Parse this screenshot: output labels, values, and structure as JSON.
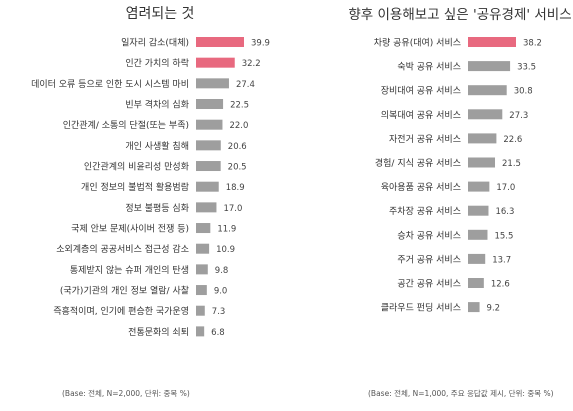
{
  "colors": {
    "highlight": "#e8697f",
    "bar": "#9e9e9e"
  },
  "chart_data": [
    {
      "type": "bar",
      "orientation": "horizontal",
      "title": "염려되는 것",
      "note": "(Base: 전체, N=2,000, 단위: 중복 %)",
      "categories": [
        "일자리 감소(대체)",
        "인간 가치의 하락",
        "데이터 오류 등으로 인한 도시 시스템 마비",
        "빈부 격차의 심화",
        "인간관계/ 소통의 단절(또는 부족)",
        "개인 사생활 침해",
        "인간관계의 비윤리성 만성화",
        "개인 정보의 불법적 활용범람",
        "정보 불평등 심화",
        "국제 안보 문제(사이버 전쟁 등)",
        "소외계층의 공공서비스 접근성 감소",
        "통제받지 않는 슈퍼 개인의 탄생",
        "(국가)기관의 개인 정보 열람/ 사찰",
        "즉흥적이며, 인기에 편승한 국가운영",
        "전통문화의 쇠퇴"
      ],
      "values": [
        39.9,
        32.2,
        27.4,
        22.5,
        22.0,
        20.6,
        20.5,
        18.9,
        17.0,
        11.9,
        10.9,
        9.8,
        9.0,
        7.3,
        6.8
      ],
      "value_labels": [
        "39.9",
        "32.2",
        "27.4",
        "22.5",
        "22.0",
        "20.6",
        "20.5",
        "18.9",
        "17.0",
        "11.9",
        "10.9",
        "9.8",
        "9.0",
        "7.3",
        "6.8"
      ],
      "highlighted": [
        0,
        1
      ]
    },
    {
      "type": "bar",
      "orientation": "horizontal",
      "title": "향후 이용해보고 싶은 '공유경제' 서비스",
      "note": "(Base: 전체, N=1,000, 주요 응답값 제시, 단위: 중복 %)",
      "categories": [
        "차량 공유(대여) 서비스",
        "숙박 공유 서비스",
        "장비대여 공유 서비스",
        "의복대여 공유 서비스",
        "자전거 공유 서비스",
        "경험/ 지식 공유 서비스",
        "육아용품 공유 서비스",
        "주차장 공유 서비스",
        "승차 공유 서비스",
        "주거 공유 서비스",
        "공간 공유 서비스",
        "클라우드 펀딩 서비스"
      ],
      "values": [
        38.2,
        33.5,
        30.8,
        27.3,
        22.6,
        21.5,
        17.0,
        16.3,
        15.5,
        13.7,
        12.6,
        9.2
      ],
      "value_labels": [
        "38.2",
        "33.5",
        "30.8",
        "27.3",
        "22.6",
        "21.5",
        "17.0",
        "16.3",
        "15.5",
        "13.7",
        "12.6",
        "9.2"
      ],
      "highlighted": [
        0
      ]
    }
  ]
}
